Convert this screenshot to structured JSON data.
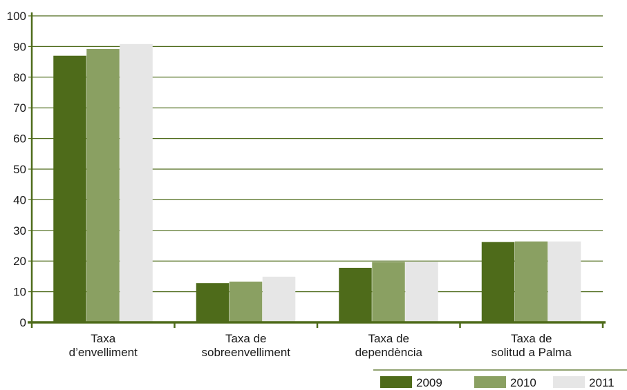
{
  "chart_data": {
    "type": "bar",
    "categories": [
      [
        "Taxa",
        "d’envelliment"
      ],
      [
        "Taxa    de",
        "sobreenvelliment"
      ],
      [
        "Taxa  de",
        "dependència"
      ],
      [
        "Taxa  de",
        "solitud a Palma"
      ]
    ],
    "series": [
      {
        "name": "2009",
        "color": "#4e6b1a",
        "values": [
          87,
          12.8,
          17.8,
          26.2
        ]
      },
      {
        "name": "2010",
        "color": "#8aa062",
        "values": [
          89.2,
          13.3,
          19.7,
          26.4
        ]
      },
      {
        "name": "2011",
        "color": "#e6e6e6",
        "values": [
          90.8,
          14.9,
          19.7,
          26.4
        ]
      }
    ],
    "yticks": [
      "0",
      "10",
      "20",
      "30",
      "40",
      "50",
      "60",
      "70",
      "80",
      "90",
      "100"
    ],
    "ylim": [
      0,
      100
    ],
    "grid": true,
    "legend_position": "bottom-right",
    "axis_color": "#4e6b1a",
    "title": "",
    "xlabel": "",
    "ylabel": ""
  }
}
